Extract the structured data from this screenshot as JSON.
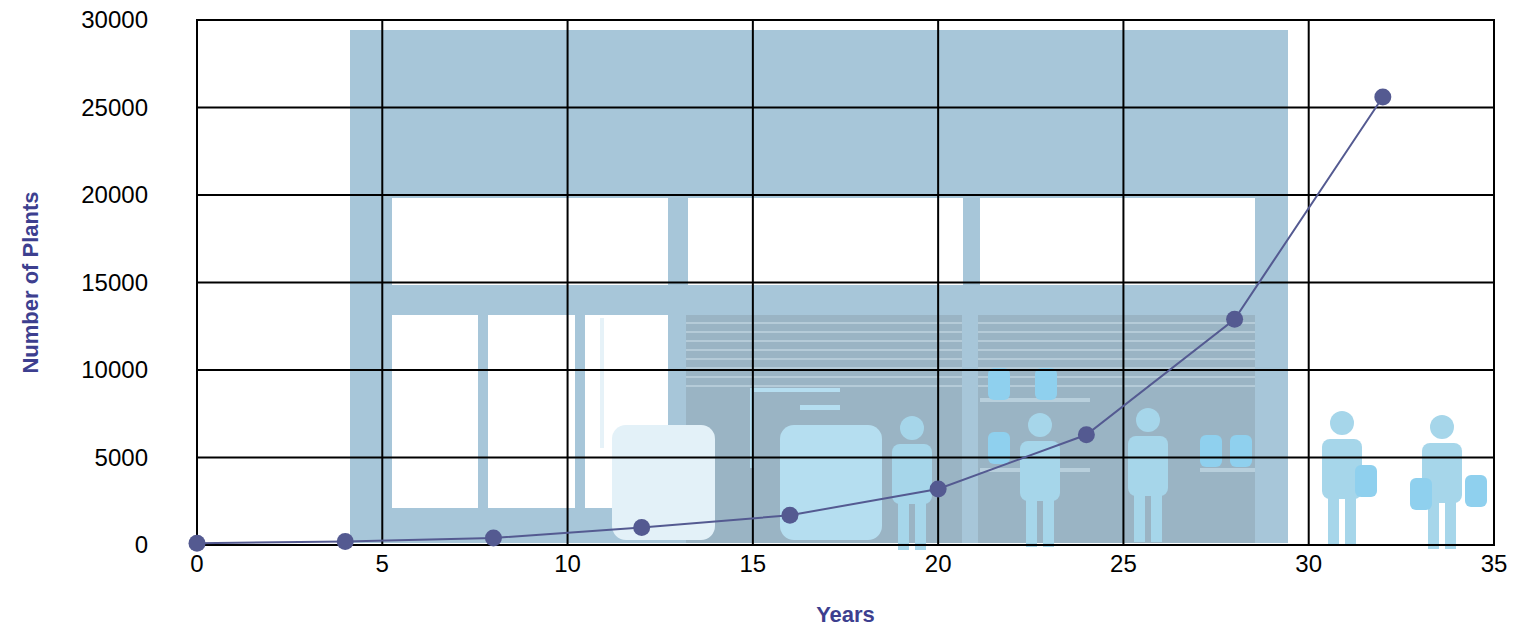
{
  "chart_data": {
    "type": "line",
    "xlabel": "Years",
    "ylabel": "Number of Plants",
    "x": [
      0,
      4,
      8,
      12,
      16,
      20,
      24,
      28,
      32
    ],
    "values": [
      100,
      200,
      400,
      1000,
      1700,
      3200,
      6300,
      12900,
      25600
    ],
    "color": "#545a91",
    "marker": "circle",
    "line_style": "solid",
    "xlim": [
      0,
      35
    ],
    "xticks": [
      0,
      5,
      10,
      15,
      20,
      25,
      30,
      35
    ],
    "ylim": [
      0,
      30000
    ],
    "yticks": [
      0,
      5000,
      10000,
      15000,
      20000,
      25000,
      30000
    ],
    "grid": true
  }
}
